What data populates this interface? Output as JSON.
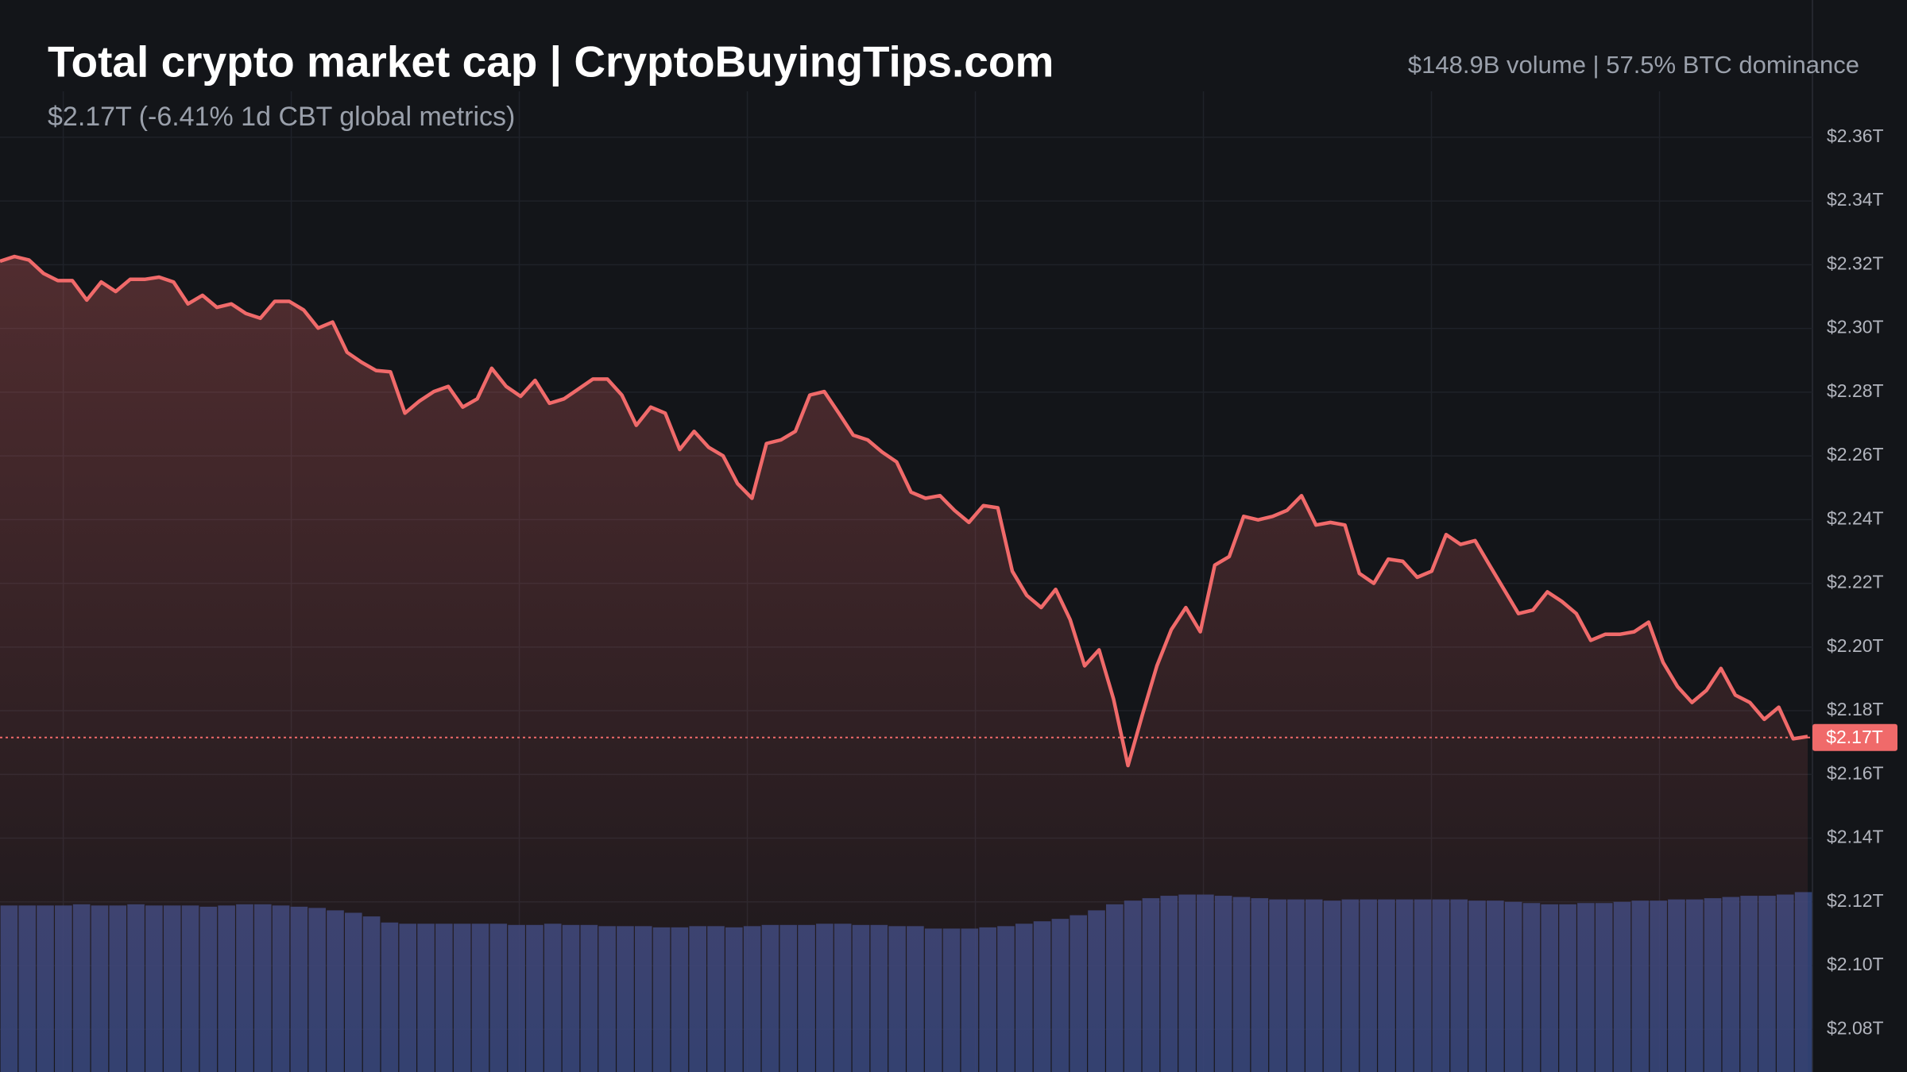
{
  "chart_data": {
    "type": "area",
    "title": "Total crypto market cap | CryptoBuyingTips.com",
    "subtitle": "$2.17T (-6.41% 1d CBT global metrics)",
    "info": "$148.9B volume | 57.5% BTC dominance",
    "color": "#f06a6a",
    "values": [
      2.3211,
      2.3226,
      2.3215,
      2.3173,
      2.315,
      2.315,
      2.3089,
      2.3146,
      2.3116,
      2.3154,
      2.3154,
      2.3161,
      2.3146,
      2.3077,
      2.3104,
      2.3066,
      2.3077,
      2.3047,
      2.3032,
      2.3085,
      2.3085,
      2.3058,
      2.3001,
      2.302,
      2.2925,
      2.2894,
      2.2868,
      2.2864,
      2.2734,
      2.2772,
      2.2802,
      2.2818,
      2.2753,
      2.2779,
      2.2875,
      2.2818,
      2.2787,
      2.2837,
      2.2765,
      2.2779,
      2.281,
      2.2841,
      2.2841,
      2.2791,
      2.2696,
      2.2753,
      2.2734,
      2.262,
      2.2677,
      2.2627,
      2.26,
      2.2513,
      2.2467,
      2.2639,
      2.265,
      2.2677,
      2.2791,
      2.2802,
      2.2734,
      2.2665,
      2.265,
      2.2612,
      2.2581,
      2.2486,
      2.2467,
      2.2475,
      2.2429,
      2.2391,
      2.2444,
      2.2437,
      2.2238,
      2.2162,
      2.2124,
      2.2181,
      2.2086,
      2.1941,
      2.1991,
      2.1837,
      2.1628,
      2.1788,
      2.1941,
      2.2055,
      2.2124,
      2.2048,
      2.2257,
      2.2284,
      2.241,
      2.2399,
      2.241,
      2.2429,
      2.2475,
      2.2383,
      2.2391,
      2.2383,
      2.2231,
      2.22,
      2.2276,
      2.2269,
      2.2219,
      2.2238,
      2.2353,
      2.2322,
      2.2334,
      2.2257,
      2.2181,
      2.2105,
      2.2116,
      2.2173,
      2.2143,
      2.2105,
      2.2021,
      2.204,
      2.204,
      2.2048,
      2.2078,
      2.1952,
      2.1876,
      2.1826,
      2.1864,
      2.1933,
      2.1849,
      2.1826,
      2.1773,
      2.1811,
      2.1712,
      2.1719
    ],
    "price_label": {
      "value": 2.1716,
      "label": "$2.17T"
    },
    "volume": {
      "color": "#34457a",
      "values": [
        137,
        137,
        137,
        137,
        138,
        137,
        137,
        138,
        137,
        137,
        137,
        136,
        137,
        138,
        138,
        137,
        136,
        135,
        133,
        131,
        128,
        123,
        122,
        122,
        122,
        122,
        122,
        122,
        121,
        121,
        122,
        121,
        121,
        120,
        120,
        120,
        119,
        119,
        120,
        120,
        119,
        120,
        121,
        121,
        121,
        122,
        122,
        121,
        121,
        120,
        120,
        118,
        118,
        118,
        119,
        120,
        122,
        124,
        126,
        129,
        133,
        138,
        141,
        143,
        145,
        146,
        146,
        145,
        144,
        143,
        142,
        142,
        142,
        141,
        142,
        142,
        142,
        142,
        142,
        142,
        142,
        141,
        141,
        140,
        139,
        138,
        138,
        139,
        139,
        140,
        141,
        141,
        142,
        142,
        143,
        144,
        145,
        145,
        146,
        148
      ]
    },
    "ylim": [
      2.0666,
      2.4031
    ],
    "yticks": [
      {
        "value": 2.36,
        "label": "$2.36T"
      },
      {
        "value": 2.34,
        "label": "$2.34T"
      },
      {
        "value": 2.32,
        "label": "$2.32T"
      },
      {
        "value": 2.3,
        "label": "$2.30T"
      },
      {
        "value": 2.28,
        "label": "$2.28T"
      },
      {
        "value": 2.26,
        "label": "$2.26T"
      },
      {
        "value": 2.24,
        "label": "$2.24T"
      },
      {
        "value": 2.22,
        "label": "$2.22T"
      },
      {
        "value": 2.2,
        "label": "$2.20T"
      },
      {
        "value": 2.18,
        "label": "$2.18T"
      },
      {
        "value": 2.16,
        "label": "$2.16T"
      },
      {
        "value": 2.14,
        "label": "$2.14T"
      },
      {
        "value": 2.12,
        "label": "$2.12T"
      },
      {
        "value": 2.1,
        "label": "$2.10T"
      },
      {
        "value": 2.08,
        "label": "$2.08T"
      }
    ],
    "grid": true
  }
}
